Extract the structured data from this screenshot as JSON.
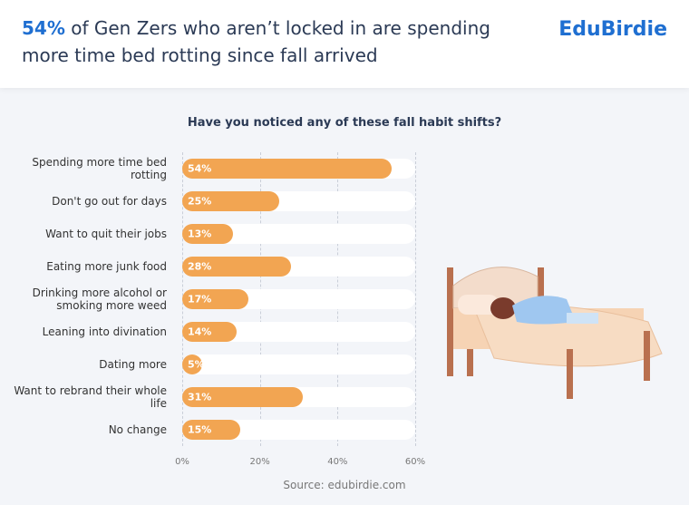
{
  "brand": "EduBirdie",
  "chart_data": {
    "type": "bar",
    "orientation": "horizontal",
    "title_highlight": "54%",
    "title": "of Gen Zers who aren’t locked in are spending more time bed rotting since fall arrived",
    "subtitle": "Have you noticed any of these fall habit shifts?",
    "categories": [
      "Spending more time bed rotting",
      "Don't go out for days",
      "Want to quit their jobs",
      "Eating more junk food",
      "Drinking more alcohol or smoking more weed",
      "Leaning into divination",
      "Dating more",
      "Want to rebrand their whole life",
      "No change"
    ],
    "values": [
      54,
      25,
      13,
      28,
      17,
      14,
      5,
      31,
      15
    ],
    "value_labels": [
      "54%",
      "25%",
      "13%",
      "28%",
      "17%",
      "14%",
      "5%",
      "31%",
      "15%"
    ],
    "color": "#f2a552",
    "xlim": [
      0,
      60
    ],
    "xticks": [
      {
        "value": 0,
        "label": "0%"
      },
      {
        "value": 20,
        "label": "20%"
      },
      {
        "value": 40,
        "label": "40%"
      },
      {
        "value": 60,
        "label": "60%"
      }
    ],
    "grid": true,
    "source": "Source: edubirdie.com"
  }
}
